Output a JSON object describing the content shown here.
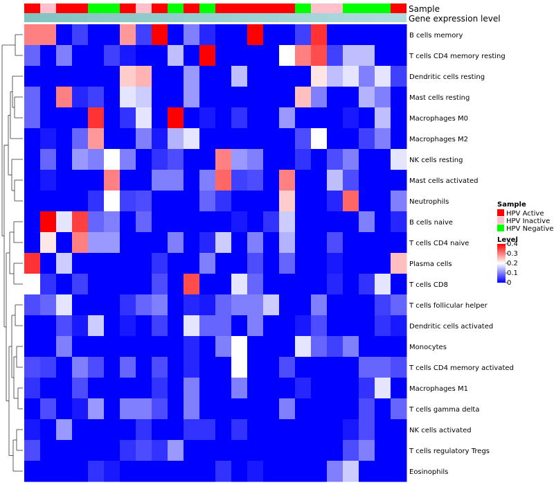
{
  "chart_data": {
    "type": "heatmap",
    "title": "",
    "annotation_tracks": [
      "Sample",
      "Gene expression level"
    ],
    "rows": [
      "B cells memory",
      "T cells CD4 memory resting",
      "Dendritic cells resting",
      "Mast cells resting",
      "Macrophages M0",
      "Macrophages M2",
      "NK cells resting",
      "Mast cells activated",
      "Neutrophils",
      "B cells naive",
      "T cells CD4 naive",
      "Plasma cells",
      "T cells CD8",
      "T cells follicular helper",
      "Dendritic cells activated",
      "Monocytes",
      "T cells CD4 memory activated",
      "Macrophages M1",
      "T cells gamma delta",
      "NK cells activated",
      "T cells regulatory  Tregs",
      "Eosinophils"
    ],
    "sample_groups": [
      "HPV Active",
      "HPV Inactive",
      "HPV Active",
      "HPV Active",
      "HPV Negative",
      "HPV Negative",
      "HPV Active",
      "HPV Inactive",
      "HPV Active",
      "HPV Negative",
      "HPV Active",
      "HPV Negative",
      "HPV Active",
      "HPV Active",
      "HPV Active",
      "HPV Active",
      "HPV Active",
      "HPV Negative",
      "HPV Inactive",
      "HPV Inactive",
      "HPV Negative",
      "HPV Negative",
      "HPV Negative",
      "HPV Active"
    ],
    "expression_level": [
      0.9,
      0.88,
      0.86,
      0.84,
      0.82,
      0.8,
      0.78,
      0.76,
      0.74,
      0.72,
      0.7,
      0.68,
      0.66,
      0.64,
      0.62,
      0.6,
      0.58,
      0.56,
      0.54,
      0.52,
      0.5,
      0.48,
      0.46,
      0.44
    ],
    "values": [
      [
        0.3,
        0.3,
        0.0,
        0.05,
        0.0,
        0.0,
        0.28,
        0.05,
        0.4,
        0.0,
        0.1,
        0.03,
        0.0,
        0.0,
        0.4,
        0.0,
        0.0,
        0.05,
        0.36,
        0.0,
        0.0,
        0.0,
        0.0,
        0.0
      ],
      [
        0.08,
        0.0,
        0.1,
        0.0,
        0.0,
        0.05,
        0.02,
        0.0,
        0.0,
        0.15,
        0.0,
        0.4,
        0.0,
        0.0,
        0.0,
        0.0,
        0.2,
        0.3,
        0.34,
        0.05,
        0.15,
        0.15,
        0.0,
        0.0
      ],
      [
        0.0,
        0.0,
        0.0,
        0.0,
        0.0,
        0.0,
        0.24,
        0.26,
        0.0,
        0.0,
        0.12,
        0.0,
        0.0,
        0.15,
        0.0,
        0.0,
        0.0,
        0.0,
        0.22,
        0.15,
        0.18,
        0.1,
        0.18,
        0.05
      ],
      [
        0.08,
        0.0,
        0.3,
        0.03,
        0.05,
        0.0,
        0.18,
        0.16,
        0.0,
        0.0,
        0.12,
        0.0,
        0.0,
        0.0,
        0.0,
        0.0,
        0.0,
        0.25,
        0.1,
        0.0,
        0.0,
        0.14,
        0.1,
        0.0
      ],
      [
        0.08,
        0.0,
        0.0,
        0.0,
        0.36,
        0.0,
        0.04,
        0.18,
        0.0,
        0.4,
        0.0,
        0.02,
        0.0,
        0.04,
        0.0,
        0.0,
        0.12,
        0.0,
        0.0,
        0.0,
        0.02,
        0.0,
        0.15,
        0.0
      ],
      [
        0.0,
        0.02,
        0.0,
        0.08,
        0.28,
        0.0,
        0.0,
        0.1,
        0.02,
        0.14,
        0.18,
        0.0,
        0.0,
        0.0,
        0.0,
        0.0,
        0.0,
        0.06,
        0.2,
        0.0,
        0.0,
        0.05,
        0.1,
        0.0
      ],
      [
        0.0,
        0.08,
        0.0,
        0.12,
        0.1,
        0.2,
        0.1,
        0.0,
        0.04,
        0.06,
        0.0,
        0.0,
        0.3,
        0.12,
        0.1,
        0.0,
        0.0,
        0.04,
        0.0,
        0.06,
        0.1,
        0.0,
        0.0,
        0.18
      ],
      [
        0.0,
        0.02,
        0.0,
        0.0,
        0.0,
        0.3,
        0.0,
        0.0,
        0.1,
        0.1,
        0.0,
        0.1,
        0.32,
        0.05,
        0.06,
        0.0,
        0.3,
        0.0,
        0.0,
        0.15,
        0.06,
        0.0,
        0.0,
        0.0
      ],
      [
        0.0,
        0.0,
        0.0,
        0.0,
        0.04,
        0.2,
        0.05,
        0.06,
        0.0,
        0.0,
        0.0,
        0.08,
        0.04,
        0.0,
        0.0,
        0.0,
        0.24,
        0.0,
        0.0,
        0.03,
        0.32,
        0.0,
        0.0,
        0.1
      ],
      [
        0.0,
        0.4,
        0.18,
        0.35,
        0.08,
        0.1,
        0.0,
        0.08,
        0.0,
        0.0,
        0.0,
        0.0,
        0.0,
        0.02,
        0.0,
        0.04,
        0.16,
        0.0,
        0.0,
        0.0,
        0.0,
        0.1,
        0.0,
        0.03
      ],
      [
        0.0,
        0.22,
        0.0,
        0.3,
        0.12,
        0.12,
        0.0,
        0.0,
        0.0,
        0.1,
        0.0,
        0.03,
        0.16,
        0.0,
        0.1,
        0.0,
        0.14,
        0.0,
        0.0,
        0.06,
        0.0,
        0.0,
        0.0,
        0.0
      ],
      [
        0.36,
        0.0,
        0.16,
        0.0,
        0.0,
        0.0,
        0.0,
        0.0,
        0.04,
        0.0,
        0.0,
        0.1,
        0.0,
        0.0,
        0.06,
        0.0,
        0.08,
        0.0,
        0.0,
        0.02,
        0.0,
        0.0,
        0.0,
        0.25
      ],
      [
        0.2,
        0.04,
        0.0,
        0.05,
        0.0,
        0.0,
        0.0,
        0.0,
        0.06,
        0.0,
        0.34,
        0.0,
        0.0,
        0.18,
        0.08,
        0.0,
        0.0,
        0.0,
        0.0,
        0.03,
        0.0,
        0.04,
        0.18,
        0.0
      ],
      [
        0.06,
        0.08,
        0.18,
        0.0,
        0.0,
        0.0,
        0.04,
        0.08,
        0.1,
        0.0,
        0.03,
        0.02,
        0.08,
        0.1,
        0.1,
        0.16,
        0.0,
        0.0,
        0.1,
        0.0,
        0.0,
        0.0,
        0.05,
        0.08
      ],
      [
        0.0,
        0.0,
        0.06,
        0.02,
        0.16,
        0.0,
        0.02,
        0.0,
        0.05,
        0.0,
        0.18,
        0.08,
        0.08,
        0.0,
        0.1,
        0.0,
        0.0,
        0.02,
        0.06,
        0.0,
        0.0,
        0.0,
        0.04,
        0.02
      ],
      [
        0.0,
        0.0,
        0.1,
        0.0,
        0.0,
        0.0,
        0.0,
        0.0,
        0.0,
        0.0,
        0.03,
        0.0,
        0.1,
        0.2,
        0.0,
        0.0,
        0.0,
        0.18,
        0.08,
        0.05,
        0.1,
        0.0,
        0.0,
        0.0
      ],
      [
        0.06,
        0.05,
        0.0,
        0.1,
        0.06,
        0.0,
        0.08,
        0.0,
        0.06,
        0.0,
        0.03,
        0.0,
        0.0,
        0.2,
        0.0,
        0.0,
        0.06,
        0.0,
        0.0,
        0.0,
        0.0,
        0.08,
        0.08,
        0.06
      ],
      [
        0.04,
        0.0,
        0.0,
        0.06,
        0.0,
        0.0,
        0.0,
        0.0,
        0.04,
        0.0,
        0.1,
        0.0,
        0.0,
        0.1,
        0.0,
        0.0,
        0.0,
        0.03,
        0.0,
        0.0,
        0.0,
        0.04,
        0.18,
        0.0
      ],
      [
        0.0,
        0.06,
        0.0,
        0.02,
        0.12,
        0.0,
        0.1,
        0.1,
        0.06,
        0.0,
        0.1,
        0.0,
        0.0,
        0.0,
        0.0,
        0.0,
        0.1,
        0.0,
        0.0,
        0.0,
        0.0,
        0.06,
        0.0,
        0.08
      ],
      [
        0.02,
        0.0,
        0.12,
        0.0,
        0.0,
        0.0,
        0.0,
        0.04,
        0.0,
        0.0,
        0.04,
        0.04,
        0.0,
        0.04,
        0.0,
        0.0,
        0.0,
        0.0,
        0.0,
        0.0,
        0.02,
        0.06,
        0.0,
        0.0
      ],
      [
        0.06,
        0.0,
        0.0,
        0.0,
        0.0,
        0.0,
        0.04,
        0.06,
        0.04,
        0.12,
        0.0,
        0.0,
        0.0,
        0.0,
        0.0,
        0.0,
        0.0,
        0.0,
        0.0,
        0.0,
        0.06,
        0.1,
        0.0,
        0.0
      ],
      [
        0.0,
        0.0,
        0.0,
        0.0,
        0.04,
        0.02,
        0.0,
        0.0,
        0.0,
        0.0,
        0.0,
        0.0,
        0.04,
        0.0,
        0.02,
        0.0,
        0.0,
        0.0,
        0.0,
        0.1,
        0.16,
        0.0,
        0.0,
        0.0
      ]
    ],
    "legend": {
      "sample_title": "Sample",
      "sample_groups": [
        {
          "label": "HPV Active",
          "color": "#ff0000"
        },
        {
          "label": "HPV Inactive",
          "color": "#ffc0cb"
        },
        {
          "label": "HPV Negative",
          "color": "#00ff00"
        }
      ],
      "level_title": "Level",
      "level_ticks": [
        "0.4",
        "0.3",
        "0.2",
        "0.1",
        "0"
      ],
      "level_range": [
        0,
        0.4
      ]
    },
    "color_scale": {
      "low": "#0000ff",
      "mid": "#ffffff",
      "high": "#ff0000",
      "midpoint": 0.2
    }
  }
}
